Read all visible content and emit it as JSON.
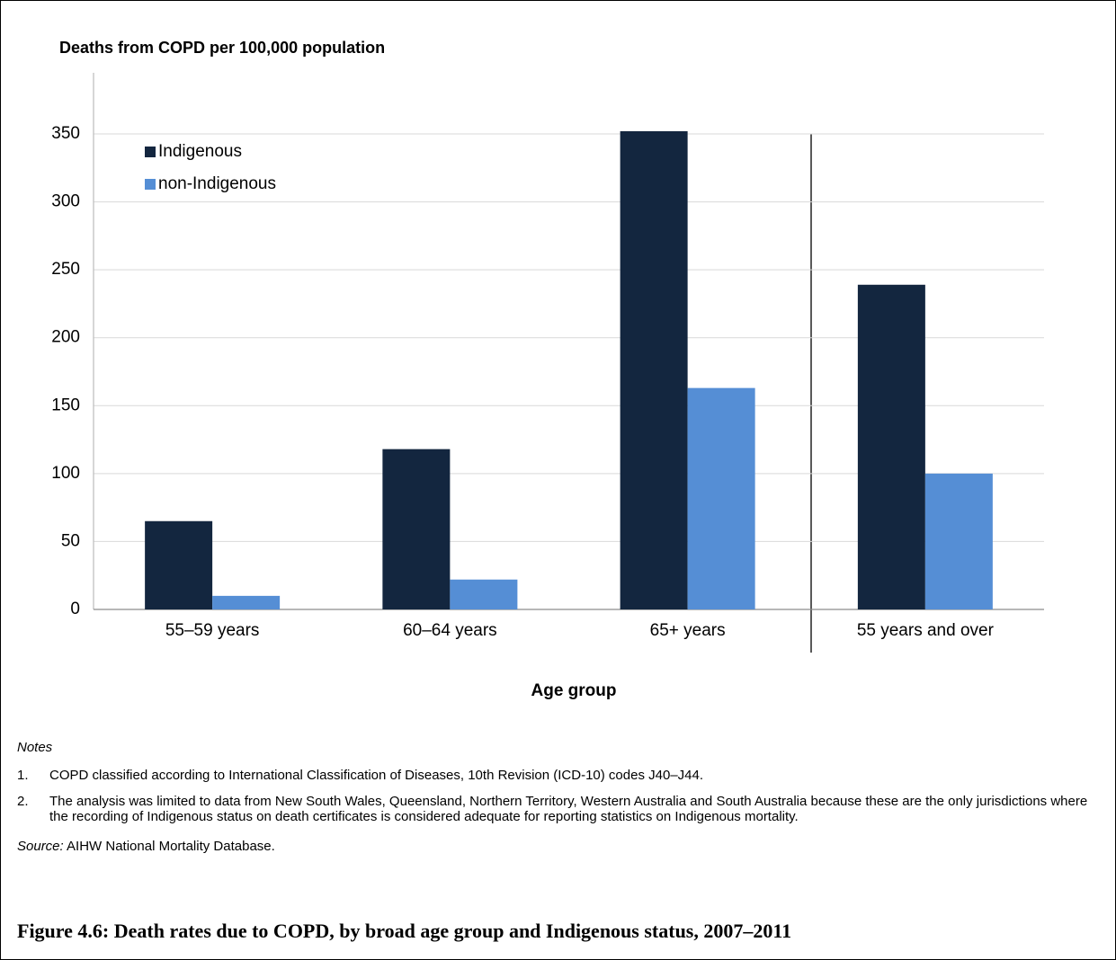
{
  "chart_data": {
    "type": "bar",
    "title": "Deaths from COPD per 100,000 population",
    "x_label": "Age group",
    "categories": [
      "55–59 years",
      "60–64 years",
      "65+ years",
      "55 years and over"
    ],
    "series": [
      {
        "name": "Indigenous",
        "color": "#13263f",
        "values": [
          65,
          118,
          352,
          239
        ]
      },
      {
        "name": "non-Indigenous",
        "color": "#558ed5",
        "values": [
          10,
          22,
          163,
          100
        ]
      }
    ],
    "ylim": [
      0,
      395
    ],
    "yticks": [
      0,
      50,
      100,
      150,
      200,
      250,
      300,
      350
    ],
    "grid": true,
    "legend": "upper left"
  },
  "notes": {
    "heading": "Notes",
    "items": [
      {
        "number": "1.",
        "text": "COPD classified according to International Classification of Diseases, 10th Revision (ICD-10) codes J40–J44."
      },
      {
        "number": "2.",
        "text": "The analysis was limited to data from New South Wales, Queensland, Northern Territory, Western Australia and South Australia because these are the only jurisdictions where the recording of Indigenous status on death certificates is considered adequate for reporting statistics on Indigenous mortality."
      }
    ]
  },
  "source": {
    "label": "Source:",
    "text": "AIHW National Mortality Database."
  },
  "caption": "Figure 4.6: Death rates due to COPD, by broad age group and Indigenous status, 2007–2011"
}
